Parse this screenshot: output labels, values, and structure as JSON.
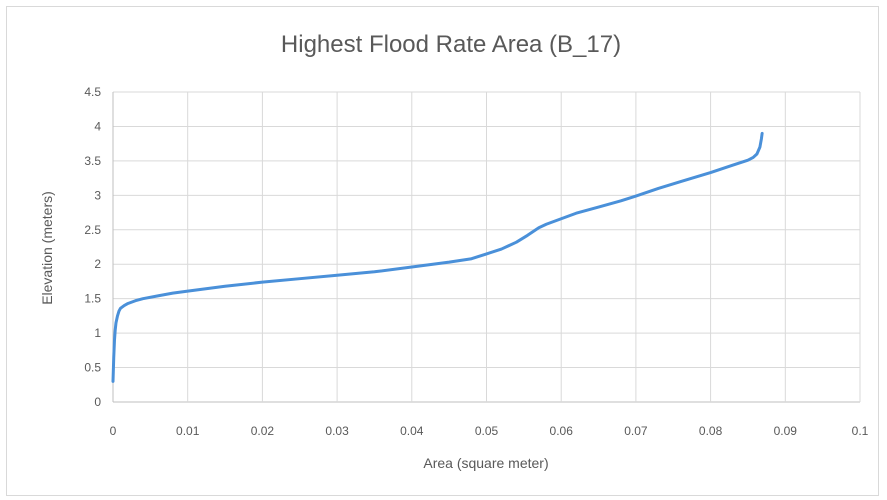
{
  "chart_data": {
    "type": "line",
    "title": "Highest Flood Rate Area (B_17)",
    "xlabel": "Area (square meter)",
    "ylabel": "Elevation (meters)",
    "xlim": [
      0,
      0.1
    ],
    "ylim": [
      0,
      4.5
    ],
    "x_ticks": [
      "0",
      "0.01",
      "0.02",
      "0.03",
      "0.04",
      "0.05",
      "0.06",
      "0.07",
      "0.08",
      "0.09",
      "0.1"
    ],
    "y_ticks": [
      "0",
      "0.5",
      "1",
      "1.5",
      "2",
      "2.5",
      "3",
      "3.5",
      "4",
      "4.5"
    ],
    "grid": true,
    "legend": "none",
    "colors": {
      "series": "#4a90d9",
      "grid": "#d9d9d9",
      "text": "#595959"
    },
    "series": [
      {
        "x": [
          0.0,
          0.0001,
          0.0002,
          0.0003,
          0.0004,
          0.0006,
          0.0008,
          0.001,
          0.0015,
          0.002,
          0.003,
          0.004,
          0.006,
          0.008,
          0.01,
          0.015,
          0.02,
          0.025,
          0.03,
          0.035,
          0.04,
          0.045,
          0.048,
          0.05,
          0.052,
          0.054,
          0.0555,
          0.057,
          0.058,
          0.06,
          0.062,
          0.065,
          0.068,
          0.07,
          0.073,
          0.076,
          0.08,
          0.083,
          0.085,
          0.0857,
          0.0862,
          0.0866,
          0.0868,
          0.0869
        ],
        "y": [
          0.3,
          0.65,
          0.9,
          1.05,
          1.15,
          1.25,
          1.32,
          1.36,
          1.4,
          1.43,
          1.47,
          1.5,
          1.54,
          1.58,
          1.61,
          1.68,
          1.74,
          1.79,
          1.84,
          1.89,
          1.96,
          2.03,
          2.08,
          2.15,
          2.22,
          2.32,
          2.42,
          2.53,
          2.58,
          2.66,
          2.74,
          2.83,
          2.92,
          2.99,
          3.1,
          3.2,
          3.33,
          3.44,
          3.51,
          3.55,
          3.6,
          3.7,
          3.82,
          3.9
        ]
      }
    ]
  }
}
